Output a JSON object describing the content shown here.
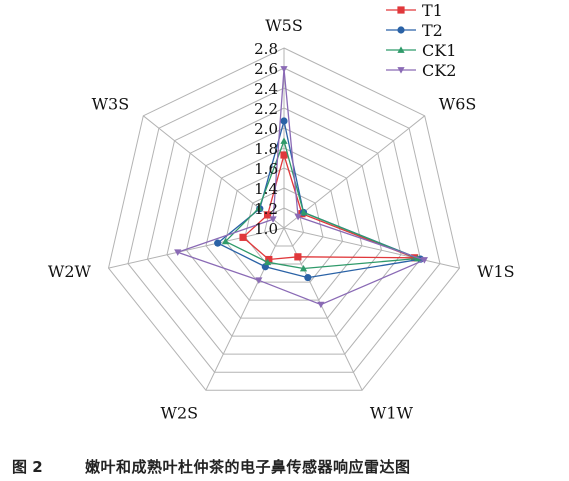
{
  "chart_data": {
    "type": "radar",
    "axes": [
      "W5S",
      "W6S",
      "W1S",
      "W1W",
      "W2S",
      "W2W",
      "W3S"
    ],
    "r_ticks": [
      "1.0",
      "1.2",
      "1.4",
      "1.6",
      "1.8",
      "2.0",
      "2.2",
      "2.4",
      "2.6",
      "2.8"
    ],
    "r_range": [
      1.0,
      2.8
    ],
    "grid": true,
    "legend_position": "top-right",
    "series": [
      {
        "name": "T1",
        "color": "#e0383b",
        "marker": "square",
        "values": [
          1.73,
          1.23,
          2.34,
          1.32,
          1.35,
          1.42,
          1.21
        ]
      },
      {
        "name": "T2",
        "color": "#2a62a6",
        "marker": "circle",
        "values": [
          2.07,
          1.25,
          2.4,
          1.55,
          1.43,
          1.68,
          1.31
        ]
      },
      {
        "name": "CK1",
        "color": "#2f9a6a",
        "marker": "triangle-up",
        "values": [
          1.87,
          1.25,
          2.37,
          1.45,
          1.38,
          1.6,
          1.32
        ]
      },
      {
        "name": "CK2",
        "color": "#8a6ab5",
        "marker": "triangle-down",
        "values": [
          2.59,
          1.18,
          2.44,
          1.85,
          1.58,
          2.09,
          1.14
        ]
      }
    ]
  },
  "caption": {
    "figure_number": "图 2",
    "title": "嫩叶和成熟叶杜仲茶的电子鼻传感器响应雷达图"
  }
}
